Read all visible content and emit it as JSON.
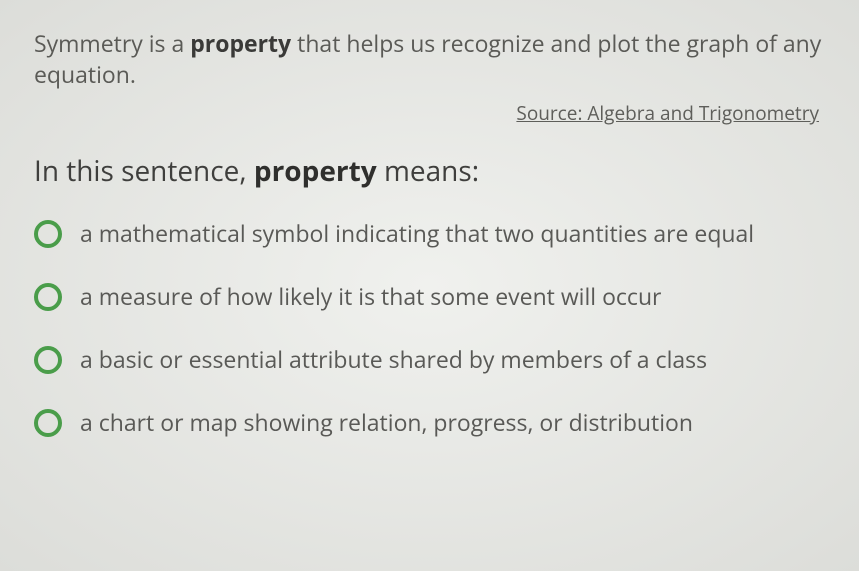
{
  "context": {
    "pre": "Symmetry is a ",
    "bold": "property",
    "post": " that helps us recognize and plot the graph of any equation."
  },
  "source": "Source: Algebra and Trigonometry",
  "question": {
    "pre": "In this sentence, ",
    "bold": "property",
    "post": " means:"
  },
  "options": [
    "a mathematical symbol indicating that two quantities are equal",
    "a measure of how likely it is that some event will occur",
    "a basic or essential attribute shared by members of a class",
    "a chart or map showing relation, progress, or distribution"
  ],
  "colors": {
    "radio_border": "#4a9d4a",
    "text": "#595956",
    "bold_text": "#2f2f2d",
    "background": "#e8e9e6"
  },
  "typography": {
    "context_fontsize": 23,
    "question_fontsize": 28,
    "option_fontsize": 23,
    "source_fontsize": 19
  }
}
